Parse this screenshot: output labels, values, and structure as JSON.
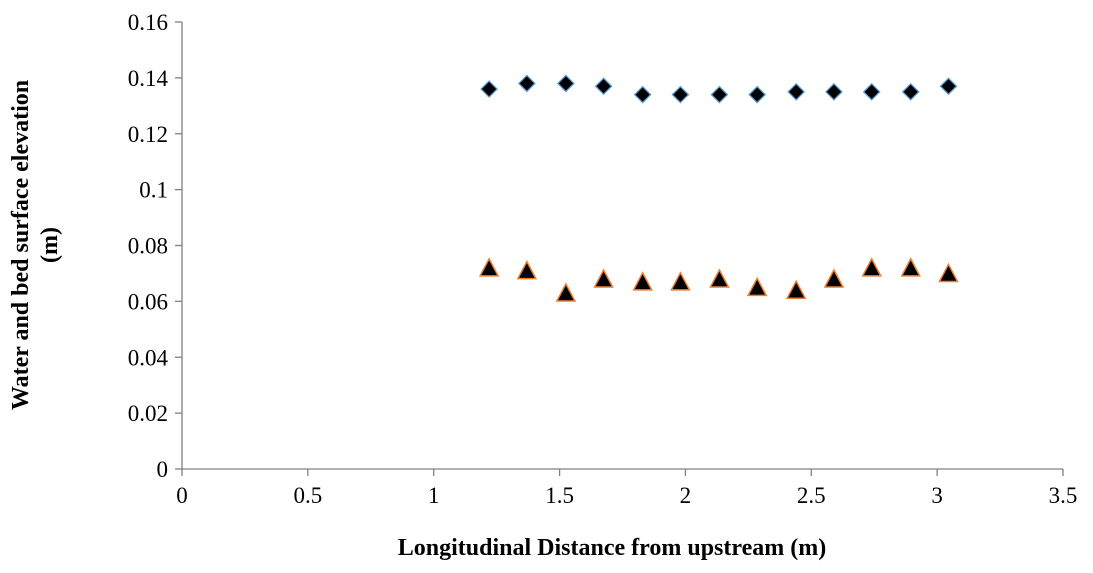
{
  "chart_data": {
    "type": "scatter",
    "title": "",
    "xlabel": "Longitudinal Distance from upstream (m)",
    "ylabel_line1": "Water and bed surface elevation",
    "ylabel_line2": "(m)",
    "xlim": [
      0,
      3.5
    ],
    "ylim": [
      0,
      0.16
    ],
    "x_ticks": [
      0,
      0.5,
      1,
      1.5,
      2,
      2.5,
      3,
      3.5
    ],
    "x_tick_labels": [
      "0",
      "0.5",
      "1",
      "1.5",
      "2",
      "2.5",
      "3",
      "3.5"
    ],
    "y_ticks": [
      0,
      0.02,
      0.04,
      0.06,
      0.08,
      0.1,
      0.12,
      0.14,
      0.16
    ],
    "y_tick_labels": [
      "0",
      "0.02",
      "0.04",
      "0.06",
      "0.08",
      "0.1",
      "0.12",
      "0.14",
      "0.16"
    ],
    "grid": false,
    "legend": "none",
    "series": [
      {
        "marker": "diamond",
        "fill": "#000000",
        "stroke": "#5b9bd5",
        "x": [
          1.22,
          1.37,
          1.525,
          1.675,
          1.83,
          1.98,
          2.135,
          2.285,
          2.44,
          2.59,
          2.74,
          2.895,
          3.045
        ],
        "y": [
          0.136,
          0.138,
          0.138,
          0.137,
          0.134,
          0.134,
          0.134,
          0.134,
          0.135,
          0.135,
          0.135,
          0.135,
          0.137
        ]
      },
      {
        "marker": "triangle",
        "fill": "#000000",
        "stroke": "#ed7d31",
        "x": [
          1.22,
          1.37,
          1.525,
          1.675,
          1.83,
          1.98,
          2.135,
          2.285,
          2.44,
          2.59,
          2.74,
          2.895,
          3.045
        ],
        "y": [
          0.072,
          0.071,
          0.063,
          0.068,
          0.067,
          0.067,
          0.068,
          0.065,
          0.064,
          0.068,
          0.072,
          0.072,
          0.07
        ]
      }
    ]
  }
}
